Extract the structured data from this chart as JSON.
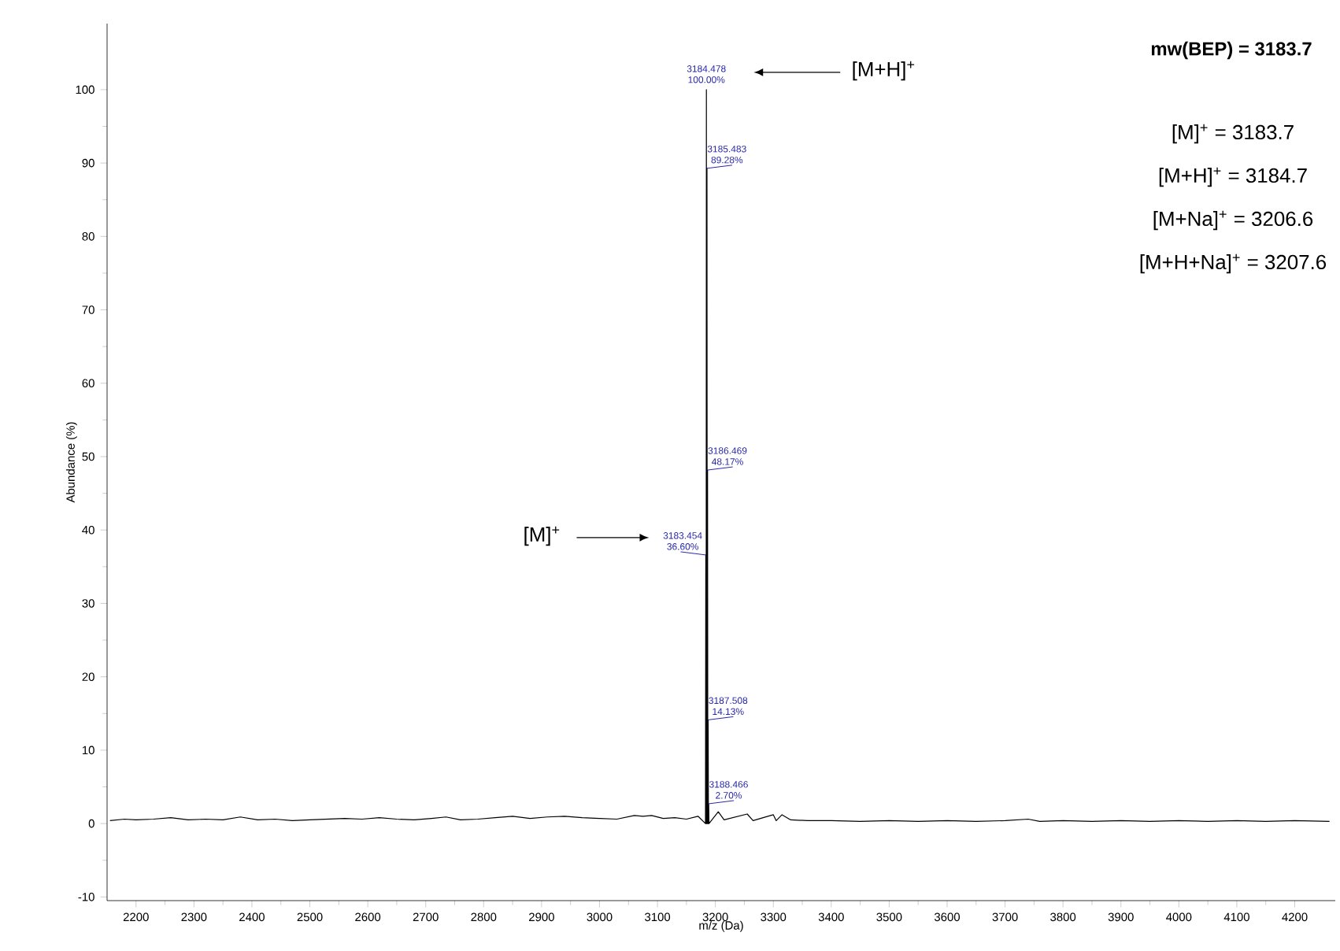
{
  "chart_data": {
    "type": "line",
    "title": "mw(BEP) = 3183.7",
    "xlabel": "m/z (Da)",
    "ylabel": "Abundance (%)",
    "xlim": [
      2150,
      4270
    ],
    "ylim": [
      -10.5,
      109
    ],
    "xticks": [
      2200,
      2300,
      2400,
      2500,
      2600,
      2700,
      2800,
      2900,
      3000,
      3100,
      3200,
      3300,
      3400,
      3500,
      3600,
      3700,
      3800,
      3900,
      4000,
      4100,
      4200
    ],
    "yticks": [
      -10,
      0,
      10,
      20,
      30,
      40,
      50,
      60,
      70,
      80,
      90,
      100
    ],
    "grid": false,
    "legend": false,
    "marker": "none",
    "line_style": "solid",
    "series": [
      {
        "color": "#000000",
        "x": [
          2155,
          2180,
          2200,
          2230,
          2260,
          2290,
          2320,
          2350,
          2380,
          2410,
          2440,
          2470,
          2500,
          2530,
          2560,
          2590,
          2620,
          2650,
          2680,
          2710,
          2735,
          2760,
          2790,
          2820,
          2850,
          2880,
          2910,
          2940,
          2970,
          3000,
          3030,
          3060,
          3075,
          3090,
          3110,
          3130,
          3150,
          3170,
          3182.9,
          3183.454,
          3183.95,
          3184.478,
          3184.95,
          3185.483,
          3185.95,
          3186.469,
          3186.95,
          3187.508,
          3187.95,
          3188.466,
          3188.95,
          3205,
          3215,
          3255,
          3265,
          3300,
          3305,
          3315,
          3330,
          3360,
          3400,
          3450,
          3500,
          3550,
          3600,
          3650,
          3700,
          3740,
          3760,
          3800,
          3850,
          3900,
          3950,
          4000,
          4050,
          4100,
          4150,
          4200,
          4260
        ],
        "values": [
          0.4,
          0.6,
          0.5,
          0.6,
          0.8,
          0.5,
          0.6,
          0.5,
          0.9,
          0.5,
          0.6,
          0.4,
          0.5,
          0.6,
          0.7,
          0.6,
          0.8,
          0.6,
          0.5,
          0.7,
          0.9,
          0.5,
          0.6,
          0.8,
          1.0,
          0.7,
          0.9,
          1.0,
          0.8,
          0.7,
          0.6,
          1.1,
          1.0,
          1.1,
          0.7,
          0.8,
          0.6,
          1.0,
          0,
          36.6,
          0,
          100.0,
          0,
          89.28,
          0,
          48.17,
          0,
          14.13,
          0,
          2.7,
          0,
          1.6,
          0.5,
          1.3,
          0.4,
          1.2,
          0.4,
          1.2,
          0.5,
          0.4,
          0.4,
          0.3,
          0.4,
          0.3,
          0.4,
          0.3,
          0.4,
          0.6,
          0.3,
          0.4,
          0.3,
          0.4,
          0.3,
          0.4,
          0.3,
          0.4,
          0.3,
          0.4,
          0.3
        ]
      }
    ],
    "annotations": [
      "[M+H]$^{+}$",
      "[M]$^{+}$",
      {
        "text": "3184.478",
        "x": 3184.478,
        "y": 100.0
      },
      {
        "text": "100.00%",
        "x": 3184.478,
        "y": 100.0
      },
      {
        "text": "3185.483",
        "x": 3185.483,
        "y": 89.28
      },
      {
        "text": "89.28%",
        "x": 3185.483,
        "y": 89.28
      },
      {
        "text": "3186.469",
        "x": 3186.469,
        "y": 48.17
      },
      {
        "text": "48.17%",
        "x": 3186.469,
        "y": 48.17
      },
      {
        "text": "3183.454",
        "x": 3183.454,
        "y": 36.6
      },
      {
        "text": "36.60%",
        "x": 3183.454,
        "y": 36.6
      },
      {
        "text": "3187.508",
        "x": 3187.508,
        "y": 14.13
      },
      {
        "text": "14.13%",
        "x": 3187.508,
        "y": 14.13
      },
      {
        "text": "3188.466",
        "x": 3188.466,
        "y": 2.7
      },
      {
        "text": "2.70%",
        "x": 3188.466,
        "y": 2.7
      },
      "[M]$^{+}$ = 3183.7",
      "[M+H]$^{+}$ = 3184.7",
      "[M+Na]$^{+}$ = 3206.6",
      "[M+H+Na]$^{+}$ = 3207.6"
    ]
  }
}
